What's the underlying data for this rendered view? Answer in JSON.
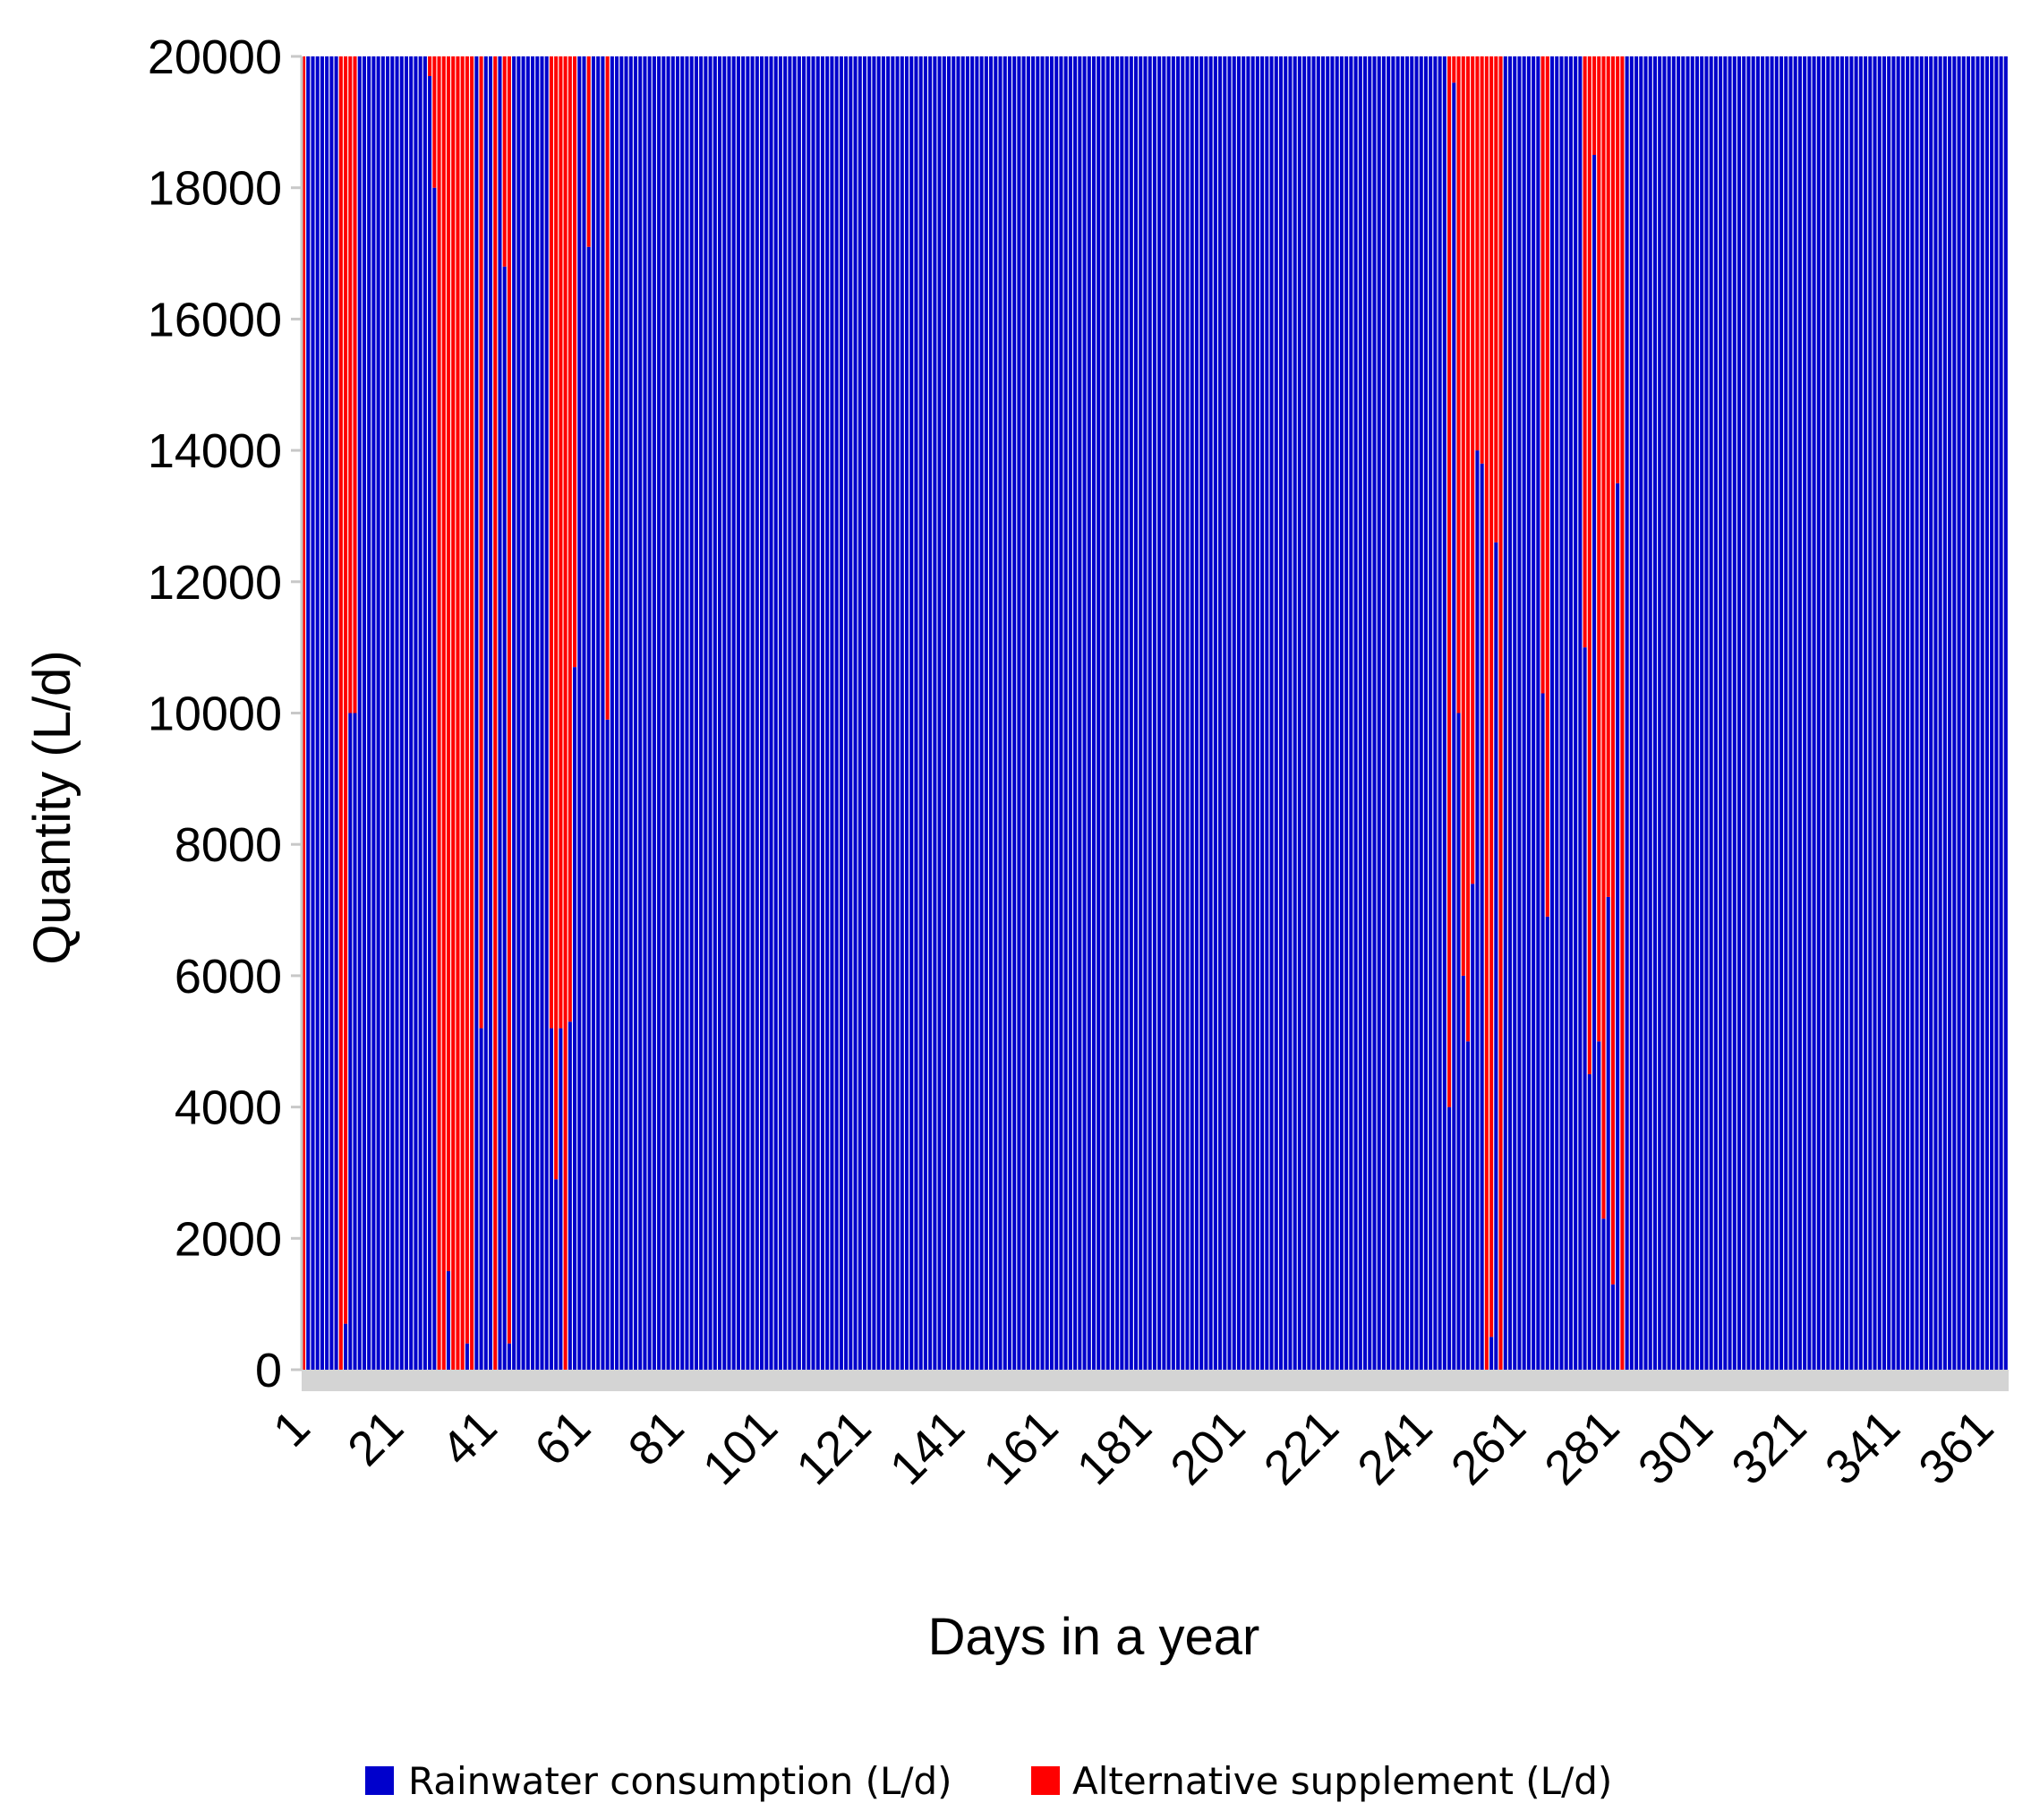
{
  "chart_data": {
    "type": "bar",
    "stacked": true,
    "title": "",
    "xlabel": "Days in a year",
    "ylabel": "Quantity (L/d)",
    "x_range": [
      1,
      365
    ],
    "ylim": [
      0,
      20000
    ],
    "y_ticks": [
      0,
      2000,
      4000,
      6000,
      8000,
      10000,
      12000,
      14000,
      16000,
      18000,
      20000
    ],
    "x_ticks": [
      1,
      21,
      41,
      61,
      81,
      101,
      121,
      141,
      161,
      181,
      201,
      221,
      241,
      261,
      281,
      301,
      321,
      341,
      361
    ],
    "total_daily_demand": 20000,
    "legend_position": "bottom",
    "series": [
      {
        "name": "Rainwater consumption (L/d)",
        "color": "#0000cc"
      },
      {
        "name": "Alternative supplement (L/d)",
        "color": "#ff0000"
      }
    ],
    "rainwater_consumption_default": 20000,
    "rainwater_consumption_by_day": {
      "1": 0,
      "9": 0,
      "10": 700,
      "11": 10000,
      "12": 10000,
      "28": 19700,
      "29": 18000,
      "30": 0,
      "31": 0,
      "32": 1500,
      "33": 0,
      "34": 0,
      "35": 0,
      "36": 400,
      "37": 0,
      "39": 5200,
      "42": 0,
      "44": 16800,
      "45": 400,
      "54": 5200,
      "55": 2900,
      "56": 5200,
      "57": 0,
      "58": 5300,
      "59": 10700,
      "62": 17100,
      "66": 9900,
      "246": 4000,
      "247": 19600,
      "248": 10000,
      "249": 6000,
      "250": 5000,
      "251": 7400,
      "252": 14000,
      "253": 13800,
      "254": 0,
      "255": 500,
      "256": 12600,
      "257": 0,
      "266": 10300,
      "267": 6900,
      "275": 11000,
      "276": 4500,
      "277": 18500,
      "278": 5000,
      "279": 2300,
      "280": 7200,
      "281": 1300,
      "282": 13500,
      "283": 0
    }
  }
}
